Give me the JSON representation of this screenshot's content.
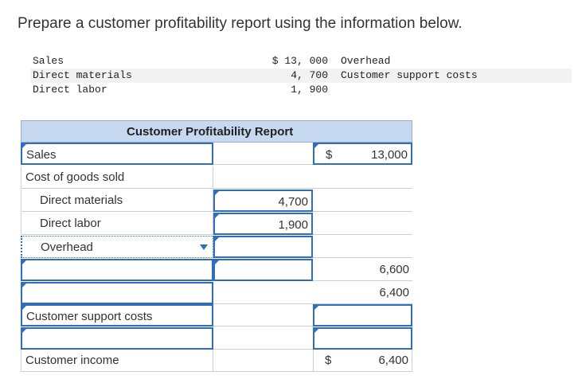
{
  "question": "Prepare a customer profitability report using the information below.",
  "info": {
    "rows": [
      {
        "label": "Sales",
        "amount": "$ 13, 000",
        "label2": "Overhead"
      },
      {
        "label": "Direct materials",
        "amount": "4, 700",
        "label2": "Customer support costs"
      },
      {
        "label": "Direct labor",
        "amount": "1, 900",
        "label2": ""
      }
    ]
  },
  "report": {
    "title": "Customer Profitability Report",
    "currency": "$",
    "sales_label": "Sales",
    "sales_value": "13,000",
    "cogs_label": "Cost of goods sold",
    "dm_label": "Direct materials",
    "dm_value": "4,700",
    "dl_label": "Direct labor",
    "dl_value": "1,900",
    "overhead_label": "Overhead",
    "row6_value": "6,600",
    "row7_value": "6,400",
    "support_label": "Customer support costs",
    "income_label": "Customer income",
    "income_value": "6,400"
  },
  "colors": {
    "header_bg": "#c6d9f1",
    "input_border": "#2f6ebf"
  }
}
